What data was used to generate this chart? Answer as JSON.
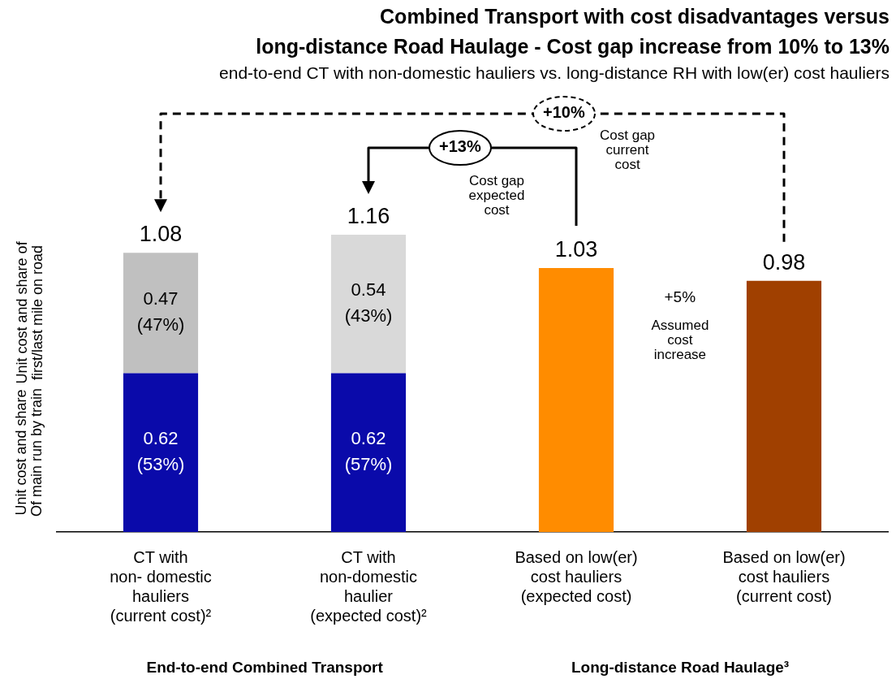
{
  "chart_data": {
    "type": "bar",
    "title": "Combined Transport with cost disadvantages versus\nlong-distance Road Haulage - Cost gap increase from 10% to 13%",
    "subtitle": "end-to-end CT with non-domestic hauliers vs. long-distance RH with low(er) cost hauliers",
    "categories": [
      "CT with\nnon- domestic\nhauliers\n(current cost)²",
      "CT with\nnon-domestic\nhaulier\n(expected cost)²",
      "Based on low(er)\ncost hauliers\n(expected cost)",
      "Based on low(er)\ncost hauliers\n(current cost)"
    ],
    "stacked": true,
    "series": [
      {
        "color": "#0a0aaa",
        "values": [
          0.62,
          0.62,
          null,
          null
        ],
        "value_labels": [
          "0.62\n(53%)",
          "0.62\n(57%)",
          null,
          null
        ]
      },
      {
        "colors": [
          "#c0c0c0",
          "#d9d9d9",
          "#c0c0c0",
          "#d9d9d9"
        ],
        "values": [
          0.47,
          0.54,
          null,
          null
        ],
        "value_labels": [
          "0.47\n(47%)",
          "0.54\n(43%)",
          null,
          null
        ]
      },
      {
        "colors": [
          "#ff8c00",
          "#ff8c00",
          "#ff8c00",
          "#a04000"
        ],
        "values": [
          null,
          null,
          1.03,
          0.98
        ]
      }
    ],
    "totals": [
      "1.08",
      "1.16",
      "1.03",
      "0.98"
    ],
    "tick_labels": "x",
    "annotations": [
      "Unit cost and share of\nfirst/last mile on road",
      "Unit cost and share\nOf main run by train",
      "+10%",
      "Cost gap\ncurrent\ncost",
      "+13%",
      "Cost gap\nexpected\ncost",
      "+5%",
      "Assumed\ncost\nincrease",
      "End-to-end Combined Transport",
      "Long-distance Road Haulage³"
    ]
  }
}
